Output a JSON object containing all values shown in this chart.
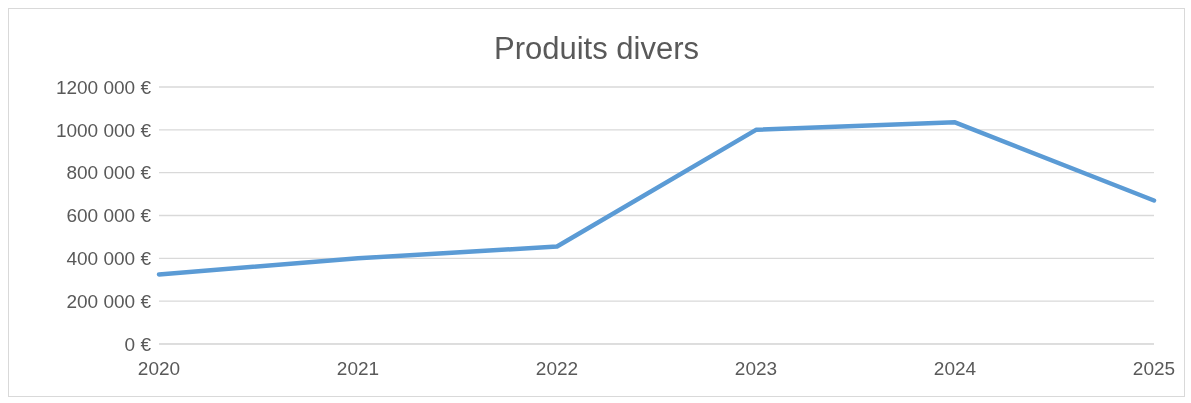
{
  "chart_data": {
    "type": "line",
    "title": "Produits divers",
    "categories": [
      "2020",
      "2021",
      "2022",
      "2023",
      "2024",
      "2025"
    ],
    "series": [
      {
        "color": "#5b9bd5",
        "values": [
          325000,
          400000,
          455000,
          1000000,
          1035000,
          670000
        ]
      }
    ],
    "ylim": [
      0,
      1200000
    ],
    "yticks": [
      {
        "value": 0,
        "label": "0 €"
      },
      {
        "value": 200000,
        "label": "200 000 €"
      },
      {
        "value": 400000,
        "label": "400 000 €"
      },
      {
        "value": 600000,
        "label": "600 000 €"
      },
      {
        "value": 800000,
        "label": "800 000 €"
      },
      {
        "value": 1000000,
        "label": "1000 000 €"
      },
      {
        "value": 1200000,
        "label": "1200 000 €"
      }
    ],
    "grid": "y",
    "legend": false,
    "marker": "none",
    "line_style": "solid"
  }
}
